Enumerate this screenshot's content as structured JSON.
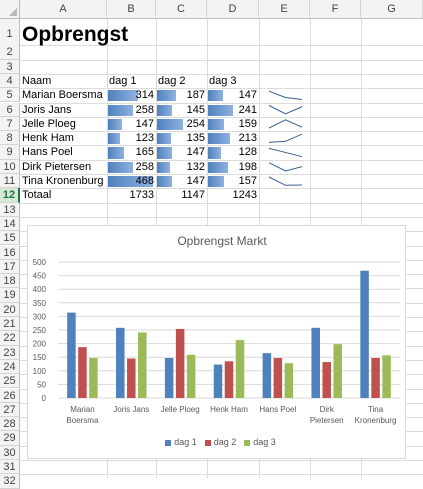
{
  "columns": [
    "A",
    "B",
    "C",
    "D",
    "E",
    "F",
    "G"
  ],
  "rows": [
    "1",
    "2",
    "3",
    "4",
    "5",
    "6",
    "7",
    "8",
    "9",
    "10",
    "11",
    "12",
    "13",
    "14",
    "15",
    "16",
    "17",
    "18",
    "19",
    "20",
    "21",
    "22",
    "23",
    "24",
    "25",
    "26",
    "27",
    "28",
    "29",
    "30",
    "31",
    "32"
  ],
  "sheet": {
    "title": "Opbrengst",
    "headers": [
      "Naam",
      "dag 1",
      "dag 2",
      "dag 3"
    ],
    "people": [
      {
        "name": "Marian Boersma",
        "d1": "314",
        "d2": "187",
        "d3": "147"
      },
      {
        "name": "Joris Jans",
        "d1": "258",
        "d2": "145",
        "d3": "241"
      },
      {
        "name": "Jelle Ploeg",
        "d1": "147",
        "d2": "254",
        "d3": "159"
      },
      {
        "name": "Henk Ham",
        "d1": "123",
        "d2": "135",
        "d3": "213"
      },
      {
        "name": "Hans Poel",
        "d1": "165",
        "d2": "147",
        "d3": "128"
      },
      {
        "name": "Dirk Pietersen",
        "d1": "258",
        "d2": "132",
        "d3": "198"
      },
      {
        "name": "Tina Kronenburg",
        "d1": "468",
        "d2": "147",
        "d3": "157"
      }
    ],
    "total_label": "Totaal",
    "totals": [
      "1733",
      "1147",
      "1243"
    ],
    "databar_max": 468
  },
  "colors": {
    "dag1": "#4f81bd",
    "dag2": "#c0504d",
    "dag3": "#9bbb59"
  },
  "chart_data": {
    "type": "bar",
    "title": "Opbrengst Markt",
    "categories": [
      [
        "Marian",
        "Boersma"
      ],
      [
        "Joris Jans"
      ],
      [
        "Jelle Ploeg"
      ],
      [
        "Henk Ham"
      ],
      [
        "Hans Poel"
      ],
      [
        "Dirk",
        "Pietersen"
      ],
      [
        "Tina",
        "Kronenburg"
      ]
    ],
    "series": [
      {
        "name": "dag 1",
        "values": [
          314,
          258,
          147,
          123,
          165,
          258,
          468
        ]
      },
      {
        "name": "dag 2",
        "values": [
          187,
          145,
          254,
          135,
          147,
          132,
          147
        ]
      },
      {
        "name": "dag 3",
        "values": [
          147,
          241,
          159,
          213,
          128,
          198,
          157
        ]
      }
    ],
    "ylim": [
      0,
      500
    ],
    "yticks": [
      "0",
      "50",
      "100",
      "150",
      "200",
      "250",
      "300",
      "350",
      "400",
      "450",
      "500"
    ],
    "legend_position": "bottom",
    "grid": true
  }
}
